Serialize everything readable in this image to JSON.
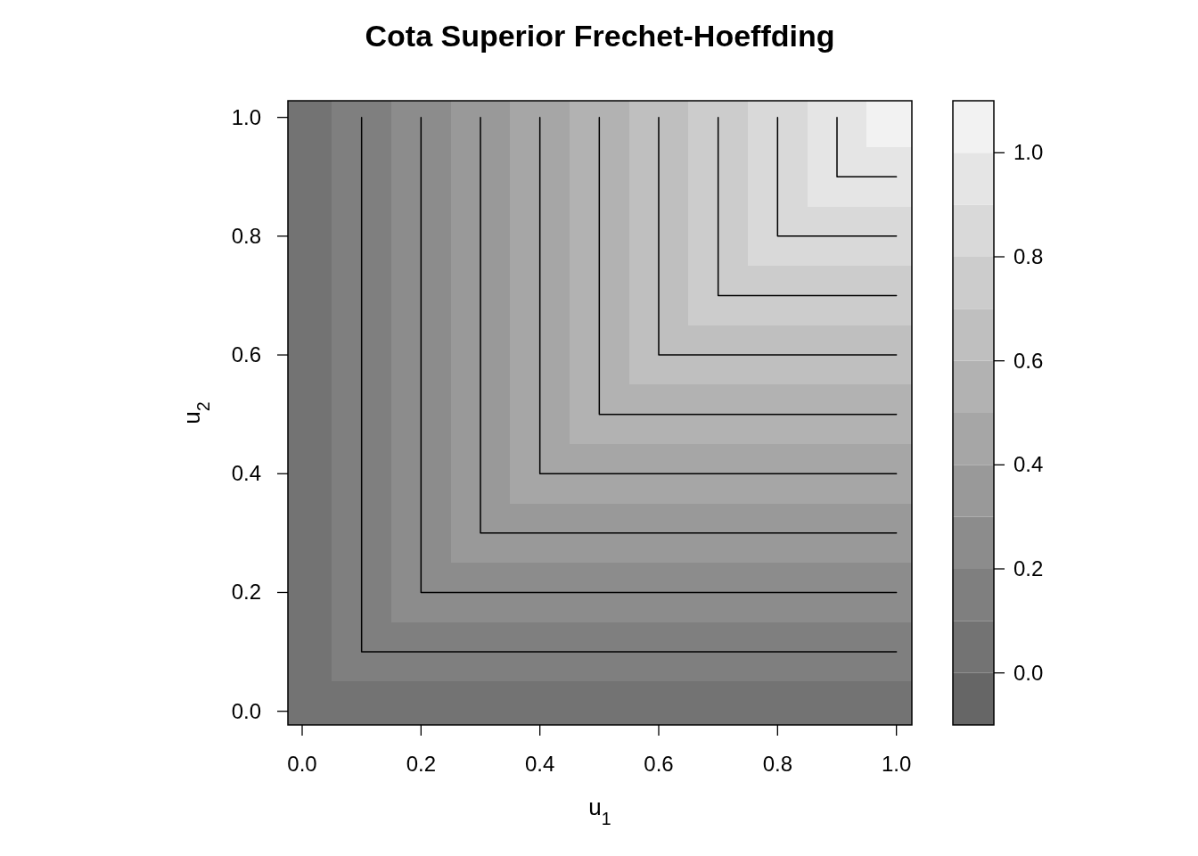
{
  "chart_data": {
    "type": "heatmap",
    "title": "Cota Superior Frechet-Hoeffding",
    "xlabel": "u$_{1}$",
    "ylabel": "u$_{2}$",
    "x": [
      0,
      0.1,
      0.2,
      0.3,
      0.4,
      0.5,
      0.6,
      0.7,
      0.8,
      0.9,
      1
    ],
    "cells": [
      [
        0,
        0.1,
        0.2,
        0.3,
        0.4,
        0.5,
        0.6,
        0.7,
        0.8,
        0.9,
        1
      ],
      [
        0,
        0.1,
        0.2,
        0.3,
        0.4,
        0.5,
        0.6,
        0.7,
        0.8,
        0.9,
        0.9
      ],
      [
        0,
        0.1,
        0.2,
        0.3,
        0.4,
        0.5,
        0.6,
        0.7,
        0.8,
        0.8,
        0.8
      ],
      [
        0,
        0.1,
        0.2,
        0.3,
        0.4,
        0.5,
        0.6,
        0.7,
        0.7,
        0.7,
        0.7
      ],
      [
        0,
        0.1,
        0.2,
        0.3,
        0.4,
        0.5,
        0.6,
        0.6,
        0.6,
        0.6,
        0.6
      ],
      [
        0,
        0.1,
        0.2,
        0.3,
        0.4,
        0.5,
        0.5,
        0.5,
        0.5,
        0.5,
        0.5
      ],
      [
        0,
        0.1,
        0.2,
        0.3,
        0.4,
        0.4,
        0.4,
        0.4,
        0.4,
        0.4,
        0.4
      ],
      [
        0,
        0.1,
        0.2,
        0.3,
        0.3,
        0.3,
        0.3,
        0.3,
        0.3,
        0.3,
        0.3
      ],
      [
        0,
        0.1,
        0.2,
        0.2,
        0.2,
        0.2,
        0.2,
        0.2,
        0.2,
        0.2,
        0.2
      ],
      [
        0,
        0.1,
        0.1,
        0.1,
        0.1,
        0.1,
        0.1,
        0.1,
        0.1,
        0.1,
        0.1
      ],
      [
        0,
        0,
        0,
        0,
        0,
        0,
        0,
        0,
        0,
        0,
        0
      ]
    ],
    "clim": [
      -0.1,
      1.1
    ],
    "cticks": [
      {
        "value": 0,
        "label": "0.0"
      },
      {
        "value": 0.2,
        "label": "0.2"
      },
      {
        "value": 0.4,
        "label": "0.4"
      },
      {
        "value": 0.6,
        "label": "0.6"
      },
      {
        "value": 0.8,
        "label": "0.8"
      },
      {
        "value": 1,
        "label": "1.0"
      }
    ],
    "xlim": [
      -0.024,
      1.026
    ],
    "ylim": [
      -0.023,
      1.028
    ],
    "xticks": [
      {
        "value": 0,
        "label": "0.0"
      },
      {
        "value": 0.2,
        "label": "0.2"
      },
      {
        "value": 0.4,
        "label": "0.4"
      },
      {
        "value": 0.6,
        "label": "0.6"
      },
      {
        "value": 0.8,
        "label": "0.8"
      },
      {
        "value": 1,
        "label": "1.0"
      }
    ],
    "yticks": [
      {
        "value": 0,
        "label": "0.0"
      },
      {
        "value": 0.2,
        "label": "0.2"
      },
      {
        "value": 0.4,
        "label": "0.4"
      },
      {
        "value": 0.6,
        "label": "0.6"
      },
      {
        "value": 0.8,
        "label": "0.8"
      },
      {
        "value": 1,
        "label": "1.0"
      }
    ],
    "series": [
      {
        "type": "line",
        "color": "#000000",
        "x": [
          0.1,
          0.1,
          1
        ],
        "values": [
          1,
          0.1,
          0.1
        ]
      },
      {
        "type": "line",
        "color": "#000000",
        "x": [
          0.2,
          0.2,
          1
        ],
        "values": [
          1,
          0.2,
          0.2
        ]
      },
      {
        "type": "line",
        "color": "#000000",
        "x": [
          0.3,
          0.3,
          1
        ],
        "values": [
          1,
          0.3,
          0.3
        ]
      },
      {
        "type": "line",
        "color": "#000000",
        "x": [
          0.4,
          0.4,
          1
        ],
        "values": [
          1,
          0.4,
          0.4
        ]
      },
      {
        "type": "line",
        "color": "#000000",
        "x": [
          0.5,
          0.5,
          1
        ],
        "values": [
          1,
          0.5,
          0.5
        ]
      },
      {
        "type": "line",
        "color": "#000000",
        "x": [
          0.6,
          0.6,
          1
        ],
        "values": [
          1,
          0.6,
          0.6
        ]
      },
      {
        "type": "line",
        "color": "#000000",
        "x": [
          0.7,
          0.7,
          1
        ],
        "values": [
          1,
          0.7,
          0.7
        ]
      },
      {
        "type": "line",
        "color": "#000000",
        "x": [
          0.8,
          0.8,
          1
        ],
        "values": [
          1,
          0.8,
          0.8
        ]
      },
      {
        "type": "line",
        "color": "#000000",
        "x": [
          0.9,
          0.9,
          1
        ],
        "values": [
          1,
          0.9,
          0.9
        ]
      }
    ]
  }
}
